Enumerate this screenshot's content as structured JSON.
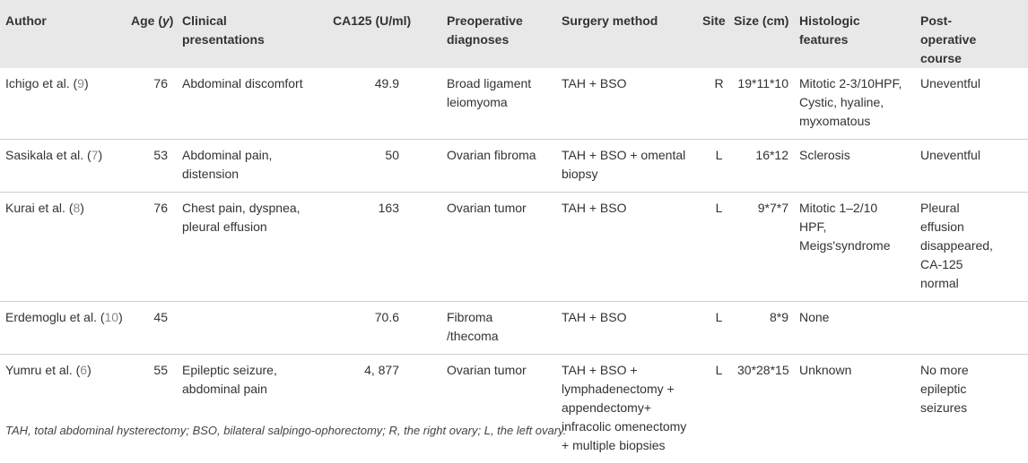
{
  "headers": {
    "author": "Author",
    "age_pre": "Age (",
    "age_y": "y",
    "age_post": ")",
    "clinical": "Clinical presentations",
    "ca125": "CA125 (U/ml)",
    "preop": "Preoperative diagnoses",
    "surgery": "Surgery method",
    "site": "Site",
    "size": "Size (cm)",
    "histologic": "Histologic features",
    "postop": "Post-operative course"
  },
  "rows": [
    {
      "author": "Ichigo et al. (",
      "ref": "9",
      "author_tail": ")",
      "age": "76",
      "clinical": "Abdominal discomfort",
      "ca125": "49.9",
      "preop": "Broad ligament leiomyoma",
      "surgery": "TAH + BSO",
      "site": "R",
      "size": "19*11*10",
      "histologic": "Mitotic 2-3/10HPF, Cystic, hyaline, myxomatous",
      "postop": "Uneventful"
    },
    {
      "author": "Sasikala et al. (",
      "ref": "7",
      "author_tail": ")",
      "age": "53",
      "clinical": "Abdominal pain, distension",
      "ca125": "50",
      "preop": "Ovarian fibroma",
      "surgery": "TAH + BSO + omental biopsy",
      "site": "L",
      "size": "16*12",
      "histologic": "Sclerosis",
      "postop": "Uneventful"
    },
    {
      "author": "Kurai et al. (",
      "ref": "8",
      "author_tail": ")",
      "age": "76",
      "clinical": "Chest pain, dyspnea, pleural effusion",
      "ca125": "163",
      "preop": "Ovarian tumor",
      "surgery": "TAH + BSO",
      "site": "L",
      "size": "9*7*7",
      "histologic": "Mitotic 1–2/10 HPF, Meigs'syndrome",
      "postop": "Pleural effusion disappeared, CA-125 normal"
    },
    {
      "author": "Erdemoglu et al. (",
      "ref": "10",
      "author_tail": ")",
      "age": "45",
      "clinical": "",
      "ca125": "70.6",
      "preop": "Fibroma /thecoma",
      "surgery": "TAH + BSO",
      "site": "L",
      "size": "8*9",
      "histologic": "None",
      "postop": ""
    },
    {
      "author": "Yumru et al. (",
      "ref": "6",
      "author_tail": ")",
      "age": "55",
      "clinical": "Epileptic seizure, abdominal pain",
      "ca125": "4, 877",
      "preop": "Ovarian tumor",
      "surgery": "TAH + BSO + lymphadenectomy + appendectomy+ infracolic omenectomy + multiple biopsies",
      "site": "L",
      "size": "30*28*15",
      "histologic": "Unknown",
      "postop": "No more epileptic seizures"
    }
  ],
  "footnote": "TAH, total abdominal hysterectomy; BSO, bilateral salpingo-ophorectomy; R, the right ovary; L, the left ovary."
}
